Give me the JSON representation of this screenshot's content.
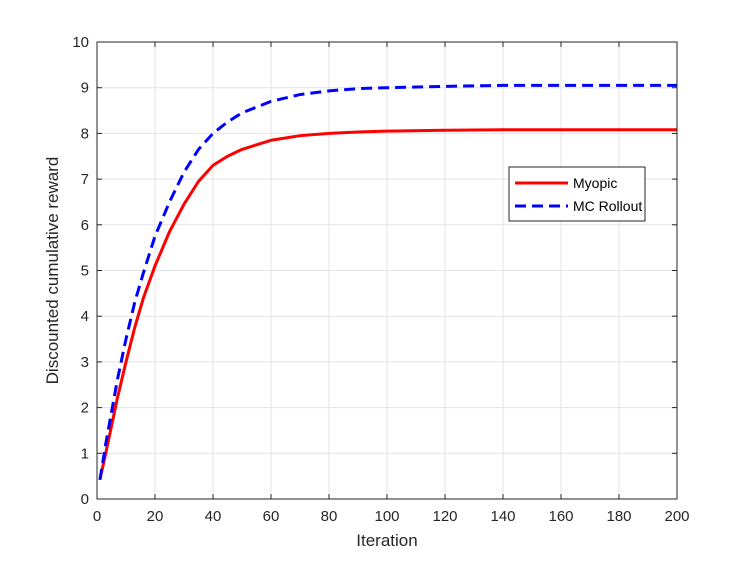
{
  "chart_data": {
    "type": "line",
    "title": "",
    "xlabel": "Iteration",
    "ylabel": "Discounted cumulative reward",
    "xlim": [
      0,
      200
    ],
    "ylim": [
      0,
      10
    ],
    "xticks": [
      "0",
      "20",
      "40",
      "60",
      "80",
      "100",
      "120",
      "140",
      "160",
      "180",
      "200"
    ],
    "yticks": [
      "0",
      "1",
      "2",
      "3",
      "4",
      "5",
      "6",
      "7",
      "8",
      "9",
      "10"
    ],
    "grid": true,
    "legend_position": "right",
    "series": [
      {
        "name": "Myopic",
        "color": "#ff0000",
        "style": "solid",
        "x": [
          1,
          3,
          5,
          7,
          10,
          13,
          16,
          20,
          25,
          30,
          35,
          40,
          45,
          50,
          60,
          70,
          80,
          90,
          100,
          120,
          140,
          160,
          180,
          200
        ],
        "y": [
          0.42,
          1.0,
          1.6,
          2.2,
          3.0,
          3.75,
          4.4,
          5.1,
          5.85,
          6.45,
          6.95,
          7.3,
          7.5,
          7.65,
          7.85,
          7.95,
          8.0,
          8.03,
          8.05,
          8.07,
          8.08,
          8.08,
          8.08,
          8.08
        ]
      },
      {
        "name": "MC Rollout",
        "color": "#0000ff",
        "style": "dashed",
        "x": [
          1,
          3,
          5,
          7,
          10,
          13,
          16,
          20,
          25,
          30,
          35,
          40,
          45,
          50,
          60,
          70,
          80,
          90,
          100,
          120,
          140,
          160,
          180,
          200
        ],
        "y": [
          0.42,
          1.2,
          1.9,
          2.6,
          3.5,
          4.3,
          4.95,
          5.75,
          6.5,
          7.15,
          7.65,
          8.0,
          8.25,
          8.45,
          8.7,
          8.85,
          8.93,
          8.98,
          9.0,
          9.03,
          9.05,
          9.05,
          9.05,
          9.05
        ]
      }
    ]
  }
}
